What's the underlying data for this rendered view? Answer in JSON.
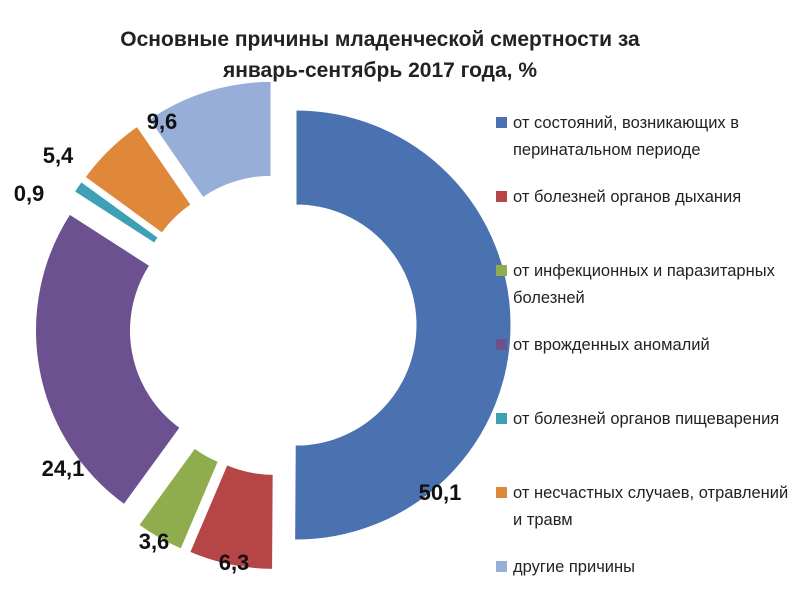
{
  "chart_data": {
    "type": "pie",
    "variant": "exploded donut",
    "title": "Основные  причины  младенческой  смертности  за\nянварь-сентябрь   2017 года, %",
    "categories": [
      "от состояний, возникающих в перинатальном периоде",
      "от болезней органов дыхания",
      "от инфекционных и паразитарных болезней",
      "от врожденных аномалий",
      "от болезней органов пищеварения",
      "от несчастных случаев, отравлений и травм",
      "другие причины"
    ],
    "values": [
      50.1,
      6.3,
      3.6,
      24.1,
      0.9,
      5.4,
      9.6
    ],
    "data_labels": [
      "50,1",
      "6,3",
      "3,6",
      "24,1",
      "0,9",
      "5,4",
      "9,6"
    ],
    "colors": [
      "#4a72b0",
      "#b54645",
      "#8fad4c",
      "#6c5191",
      "#3ea0b5",
      "#e0883a",
      "#97aed8"
    ],
    "legend": [
      {
        "label": "от состояний, возникающих в перинатальном периоде",
        "color": "#4a72b0"
      },
      {
        "label": "от болезней органов дыхания",
        "color": "#b54645"
      },
      {
        "label": "от инфекционных и паразитарных болезней",
        "color": "#8fad4c"
      },
      {
        "label": "от врожденных аномалий",
        "color": "#6c5191"
      },
      {
        "label": "от болезней органов пищеварения",
        "color": "#3ea0b5"
      },
      {
        "label": "от несчастных случаев, отравлений и травм",
        "color": "#e0883a"
      },
      {
        "label": "другие причины",
        "color": "#97aed8"
      }
    ],
    "legend_position": "right",
    "unit": "%"
  }
}
